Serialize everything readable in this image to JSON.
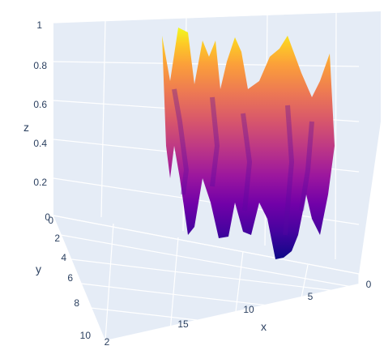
{
  "chart_data": {
    "type": "surface",
    "title": "",
    "colorscale": "plasma",
    "colors": [
      "#0d0887",
      "#46039f",
      "#7201a8",
      "#9c179e",
      "#bd3786",
      "#d8576b",
      "#ed7953",
      "#fb9f3a",
      "#fdca26",
      "#f0f921"
    ],
    "scene_background": "#e5ecf6",
    "axes": {
      "x": {
        "title": "x",
        "ticks": [
          "0",
          "5",
          "10",
          "15"
        ],
        "range": [
          0,
          19
        ]
      },
      "y": {
        "title": "y",
        "ticks": [
          "0",
          "2",
          "4",
          "6",
          "8",
          "10"
        ],
        "range": [
          0,
          10
        ]
      },
      "z": {
        "title": "z",
        "ticks": [
          "0",
          "0.2",
          "0.4",
          "0.6",
          "0.8",
          "1"
        ],
        "range": [
          0,
          1
        ]
      }
    },
    "grid": true,
    "surface_x": [
      0,
      19
    ],
    "surface_y": [
      0,
      10
    ],
    "note_values": "z values in [0,1], randomly varying surface"
  }
}
